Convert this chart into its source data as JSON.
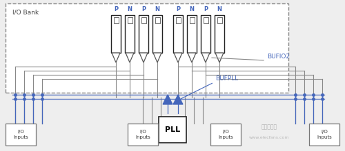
{
  "bg_color": "#eeeeee",
  "bank_label": "I/O Bank",
  "pn_left": [
    "P",
    "N",
    "P",
    "N"
  ],
  "pn_right": [
    "P",
    "N",
    "P",
    "N"
  ],
  "bufio2_label": "BUFIO2",
  "bufpll_label": "BUFPLL",
  "pll_label": "PLL",
  "io_label": "I/O\nInputs",
  "watermark": "www.elecfans.com",
  "gray": "#888888",
  "darkgray": "#555555",
  "blue": "#4466bb",
  "black": "#111111",
  "white": "#ffffff"
}
